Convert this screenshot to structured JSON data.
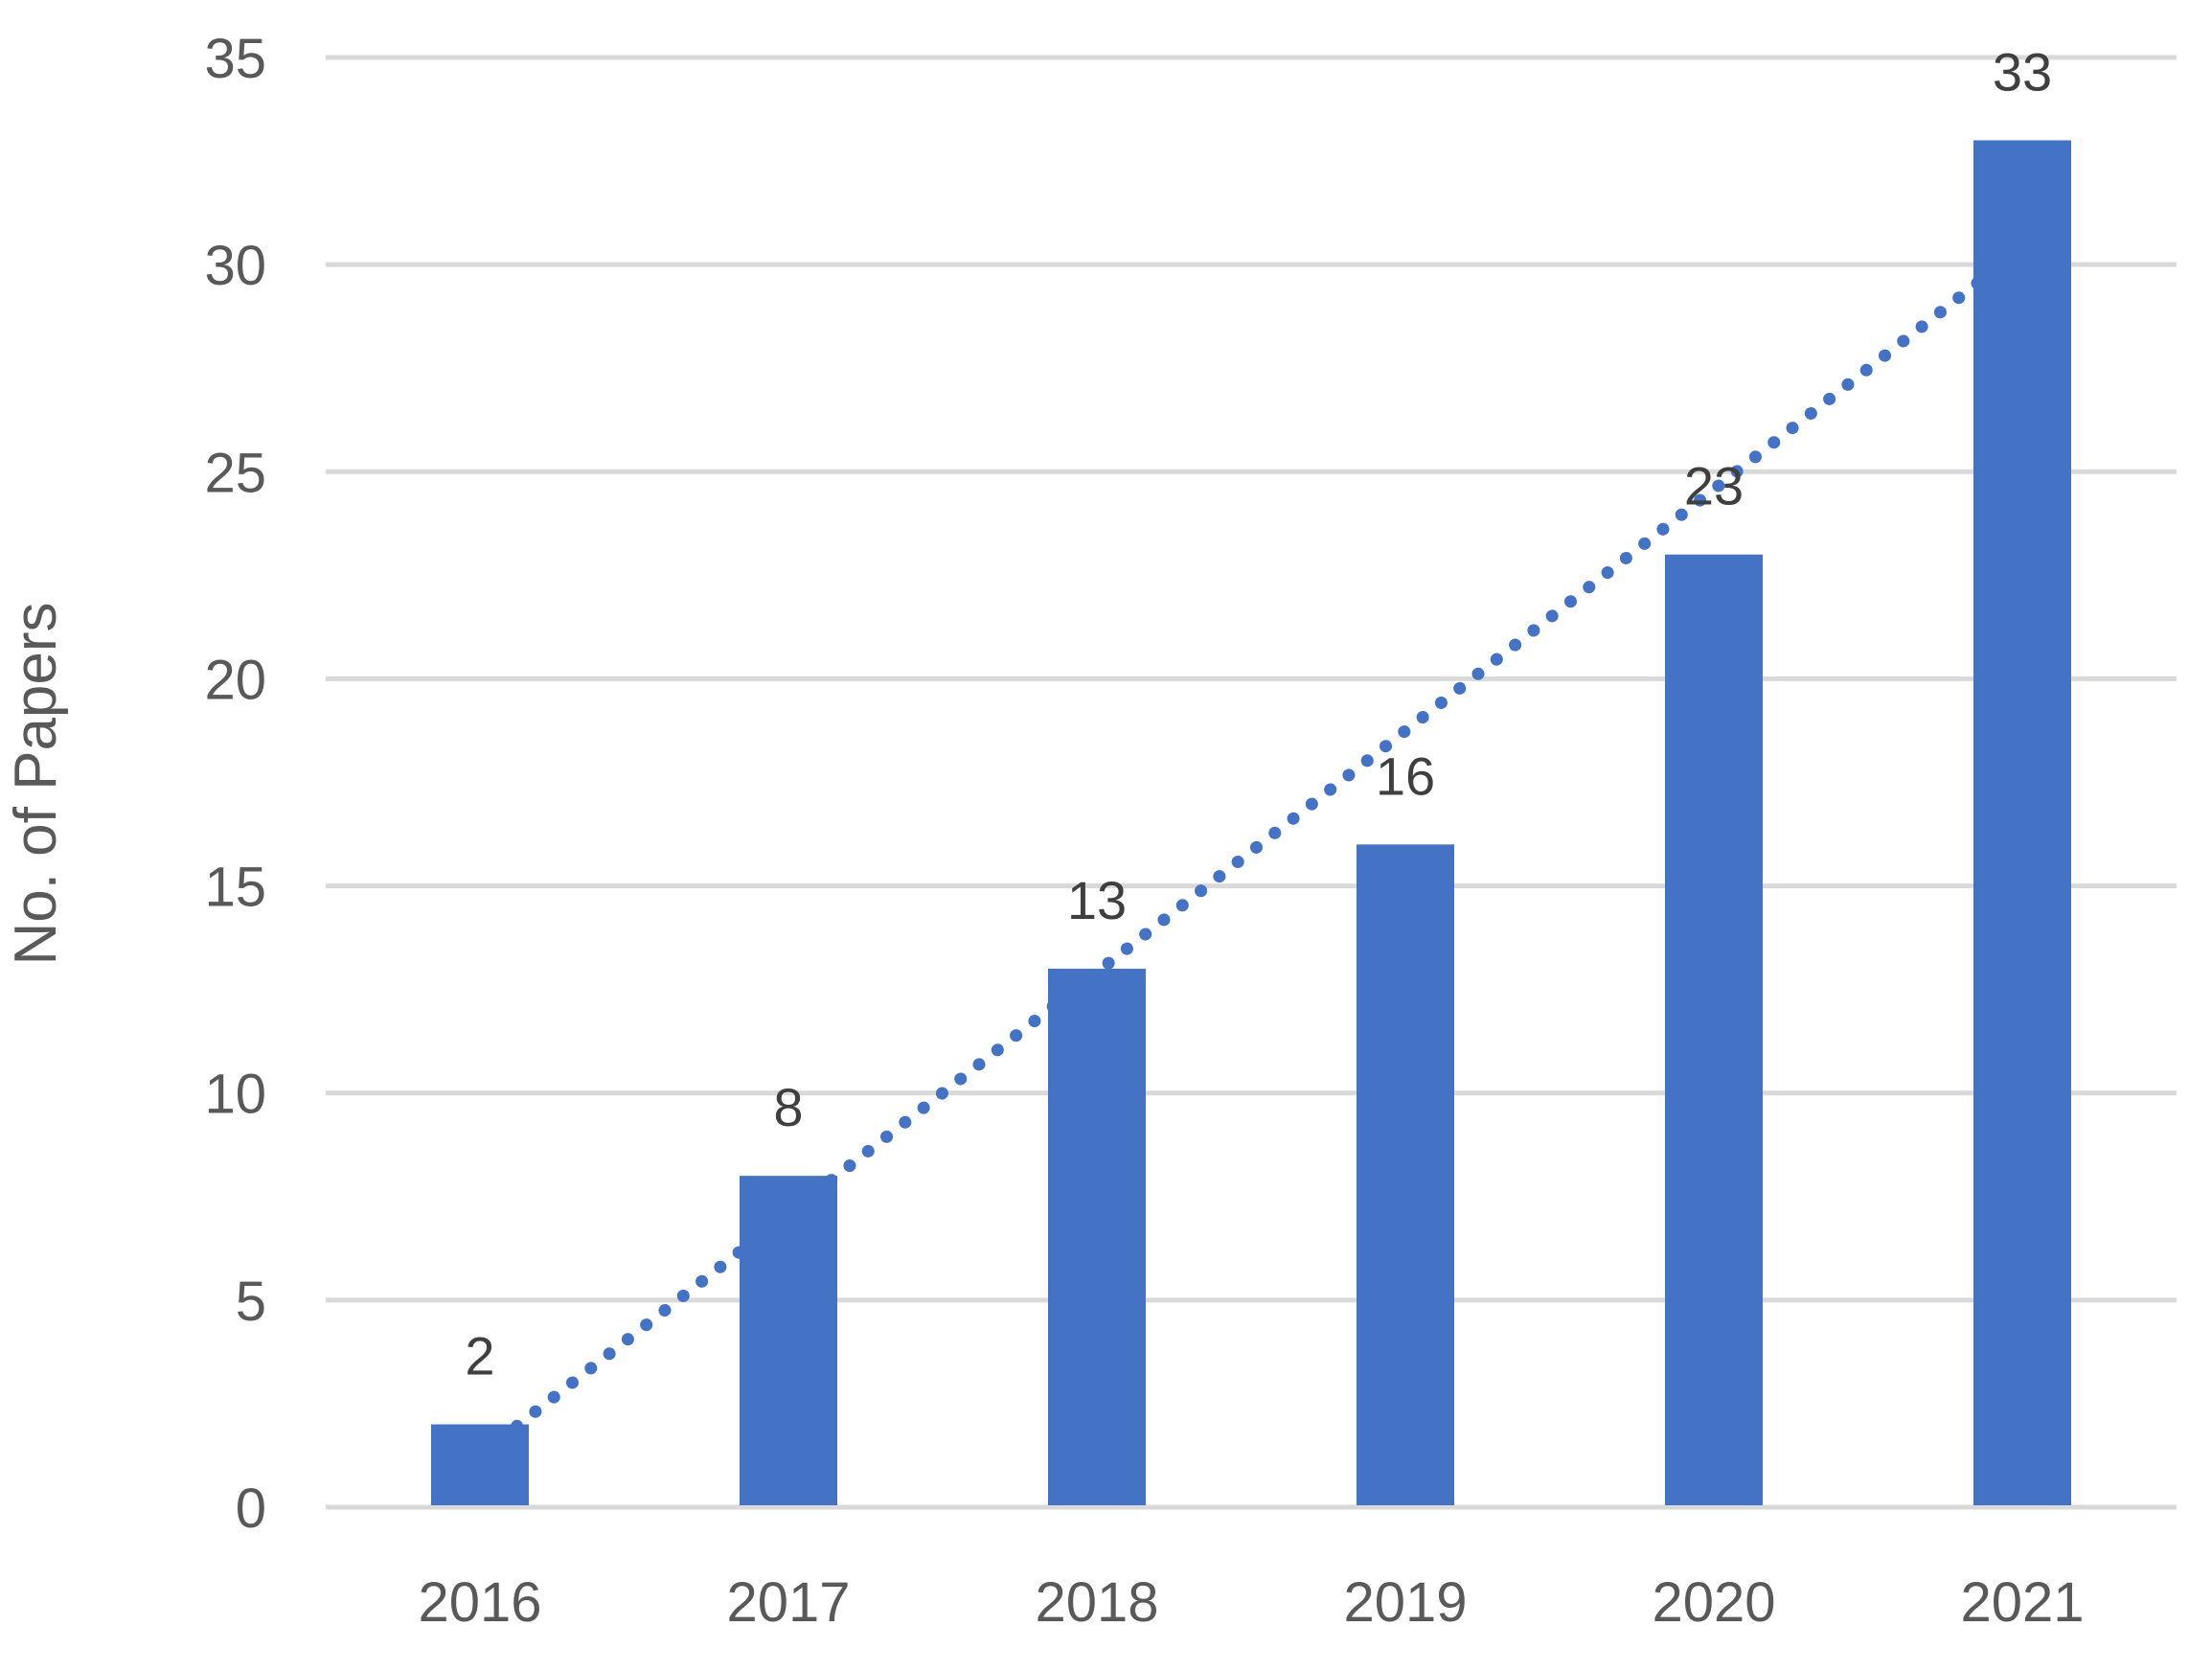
{
  "chart_data": {
    "type": "bar",
    "title": "",
    "categories": [
      "2016",
      "2017",
      "2018",
      "2019",
      "2020",
      "2021"
    ],
    "values": [
      2,
      8,
      13,
      16,
      23,
      33
    ],
    "data_labels": [
      "2",
      "8",
      "13",
      "16",
      "23",
      "33"
    ],
    "series": [
      {
        "name": "No. of Papers",
        "values": [
          2,
          8,
          13,
          16,
          23,
          33
        ]
      }
    ],
    "xlabel": "",
    "ylabel": "No. of Papers",
    "ylim": [
      0,
      35
    ],
    "yticks": [
      0,
      5,
      10,
      15,
      20,
      25,
      30,
      35
    ],
    "ytick_labels": [
      "0",
      "5",
      "10",
      "15",
      "20",
      "25",
      "30",
      "35"
    ],
    "grid": "horizontal",
    "legend": "none",
    "bar_color": "#4472C4",
    "trendline": {
      "type": "linear",
      "style": "dotted",
      "color": "#4472C4",
      "start_value": 1.26,
      "end_value": 30.4
    },
    "colors": {
      "bar": "#4472C4",
      "trend_dot": "#4472C4",
      "gridline": "#D9D9D9",
      "tick_label": "#595959",
      "data_label": "#3F3F3F",
      "axis_title": "#595959",
      "background": "#FFFFFF"
    }
  }
}
